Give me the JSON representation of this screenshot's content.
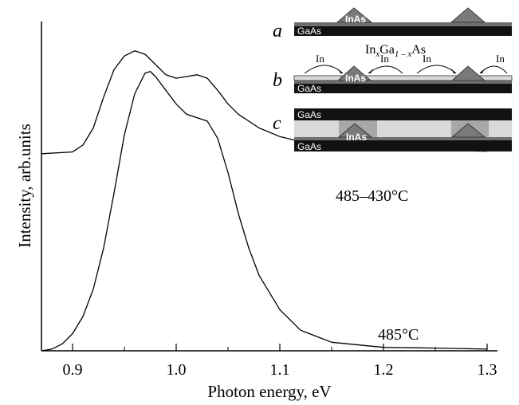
{
  "chart_data": {
    "type": "line",
    "xlabel": "Photon energy, eV",
    "ylabel": "Intensity, arb.units",
    "xlim": [
      0.87,
      1.31
    ],
    "ylim": [
      0,
      1
    ],
    "x_ticks": [
      "0.9",
      "1.0",
      "1.1",
      "1.2",
      "1.3"
    ],
    "grid": false,
    "series": [
      {
        "name": "485–430°C",
        "color": "#000000",
        "x": [
          0.87,
          0.9,
          0.91,
          0.92,
          0.93,
          0.94,
          0.95,
          0.96,
          0.97,
          0.98,
          0.99,
          1.0,
          1.01,
          1.02,
          1.03,
          1.04,
          1.05,
          1.06,
          1.08,
          1.1,
          1.12,
          1.15,
          1.2,
          1.25,
          1.3
        ],
        "y": [
          0.575,
          0.58,
          0.6,
          0.65,
          0.74,
          0.82,
          0.86,
          0.875,
          0.865,
          0.835,
          0.805,
          0.795,
          0.8,
          0.805,
          0.795,
          0.76,
          0.72,
          0.69,
          0.65,
          0.625,
          0.61,
          0.595,
          0.585,
          0.585,
          0.582
        ]
      },
      {
        "name": "485°C",
        "color": "#000000",
        "x": [
          0.87,
          0.88,
          0.89,
          0.9,
          0.91,
          0.92,
          0.93,
          0.94,
          0.95,
          0.96,
          0.97,
          0.975,
          0.98,
          0.99,
          1.0,
          1.01,
          1.02,
          1.03,
          1.04,
          1.05,
          1.06,
          1.07,
          1.08,
          1.1,
          1.12,
          1.15,
          1.2,
          1.25,
          1.3
        ],
        "y": [
          0.0,
          0.005,
          0.02,
          0.05,
          0.1,
          0.18,
          0.3,
          0.46,
          0.63,
          0.75,
          0.81,
          0.815,
          0.8,
          0.76,
          0.72,
          0.69,
          0.68,
          0.67,
          0.62,
          0.52,
          0.4,
          0.3,
          0.22,
          0.12,
          0.06,
          0.025,
          0.01,
          0.008,
          0.005
        ]
      }
    ],
    "annotations": [
      "485–430°C",
      "485°C"
    ]
  },
  "inset": {
    "panels": [
      {
        "letter": "a",
        "bottom_layer": "GaAs",
        "dot_label": "InAs"
      },
      {
        "letter": "b",
        "bottom_layer": "GaAs",
        "dot_label": "InAs",
        "formula_base": "In",
        "formula_sub1": "x",
        "formula_mid": "Ga",
        "formula_sub2": "1 – x",
        "formula_end": "As",
        "arrow_labels": [
          "In",
          "In",
          "In",
          "In"
        ]
      },
      {
        "letter": "c",
        "top_layer": "GaAs",
        "bottom_layer": "GaAs",
        "dot_label": "InAs"
      }
    ],
    "colors": {
      "substrate": "#111111",
      "wetting": "#6e6e6e",
      "dot": "#7a7a7a",
      "ingaas": "#d9d9d9",
      "rim": "#a8a8a8"
    }
  }
}
